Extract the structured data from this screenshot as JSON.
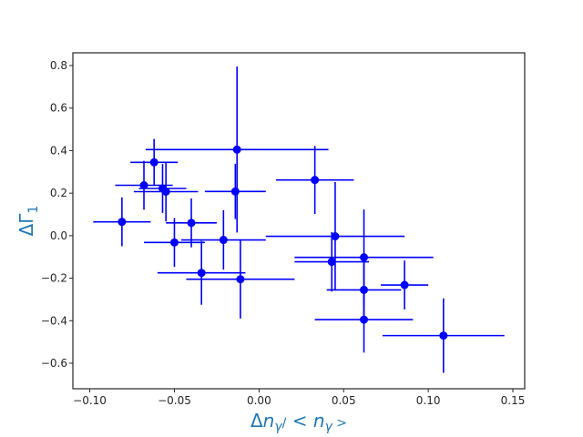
{
  "chart_data": {
    "type": "scatter",
    "title": "",
    "xlabel": "Δn_γ/<n_γ>",
    "ylabel": "ΔΓ_1",
    "xlim": [
      -0.11,
      0.157
    ],
    "ylim": [
      -0.72,
      0.86
    ],
    "xticks": [
      -0.1,
      -0.05,
      0.0,
      0.05,
      0.1,
      0.15
    ],
    "xtick_labels": [
      "−0.10",
      "−0.05",
      "0.00",
      "0.05",
      "0.10",
      "0.15"
    ],
    "yticks": [
      -0.6,
      -0.4,
      -0.2,
      0.0,
      0.2,
      0.4,
      0.6,
      0.8
    ],
    "ytick_labels": [
      "−0.6",
      "−0.4",
      "−0.2",
      "0.0",
      "0.2",
      "0.4",
      "0.6",
      "0.8"
    ],
    "grid": false,
    "legend": "none",
    "colors": {
      "marker": "#0000ff",
      "label": "#1f77b4",
      "frame": "#262626"
    },
    "points": [
      {
        "x": -0.081,
        "y": 0.065,
        "xerr": 0.017,
        "yerr": 0.115
      },
      {
        "x": -0.068,
        "y": 0.237,
        "xerr": 0.017,
        "yerr": 0.115
      },
      {
        "x": -0.062,
        "y": 0.345,
        "xerr": 0.014,
        "yerr": 0.11
      },
      {
        "x": -0.057,
        "y": 0.222,
        "xerr": 0.014,
        "yerr": 0.115
      },
      {
        "x": -0.055,
        "y": 0.207,
        "xerr": 0.019,
        "yerr": 0.14
      },
      {
        "x": -0.05,
        "y": -0.032,
        "xerr": 0.018,
        "yerr": 0.115
      },
      {
        "x": -0.04,
        "y": 0.06,
        "xerr": 0.015,
        "yerr": 0.115
      },
      {
        "x": -0.034,
        "y": -0.175,
        "xerr": 0.026,
        "yerr": 0.15
      },
      {
        "x": -0.021,
        "y": -0.02,
        "xerr": 0.025,
        "yerr": 0.14
      },
      {
        "x": -0.014,
        "y": 0.208,
        "xerr": 0.018,
        "yerr": 0.13
      },
      {
        "x": -0.013,
        "y": 0.405,
        "xerr": 0.054,
        "yerr": 0.39
      },
      {
        "x": -0.011,
        "y": -0.205,
        "xerr": 0.032,
        "yerr": 0.185
      },
      {
        "x": 0.033,
        "y": 0.262,
        "xerr": 0.023,
        "yerr": 0.16
      },
      {
        "x": 0.043,
        "y": -0.123,
        "xerr": 0.022,
        "yerr": 0.14
      },
      {
        "x": 0.045,
        "y": -0.003,
        "xerr": 0.041,
        "yerr": 0.255
      },
      {
        "x": 0.062,
        "y": -0.102,
        "xerr": 0.041,
        "yerr": 0.225
      },
      {
        "x": 0.062,
        "y": -0.255,
        "xerr": 0.022,
        "yerr": 0.14
      },
      {
        "x": 0.062,
        "y": -0.395,
        "xerr": 0.029,
        "yerr": 0.155
      },
      {
        "x": 0.086,
        "y": -0.232,
        "xerr": 0.014,
        "yerr": 0.115
      },
      {
        "x": 0.109,
        "y": -0.47,
        "xerr": 0.036,
        "yerr": 0.175
      }
    ]
  }
}
